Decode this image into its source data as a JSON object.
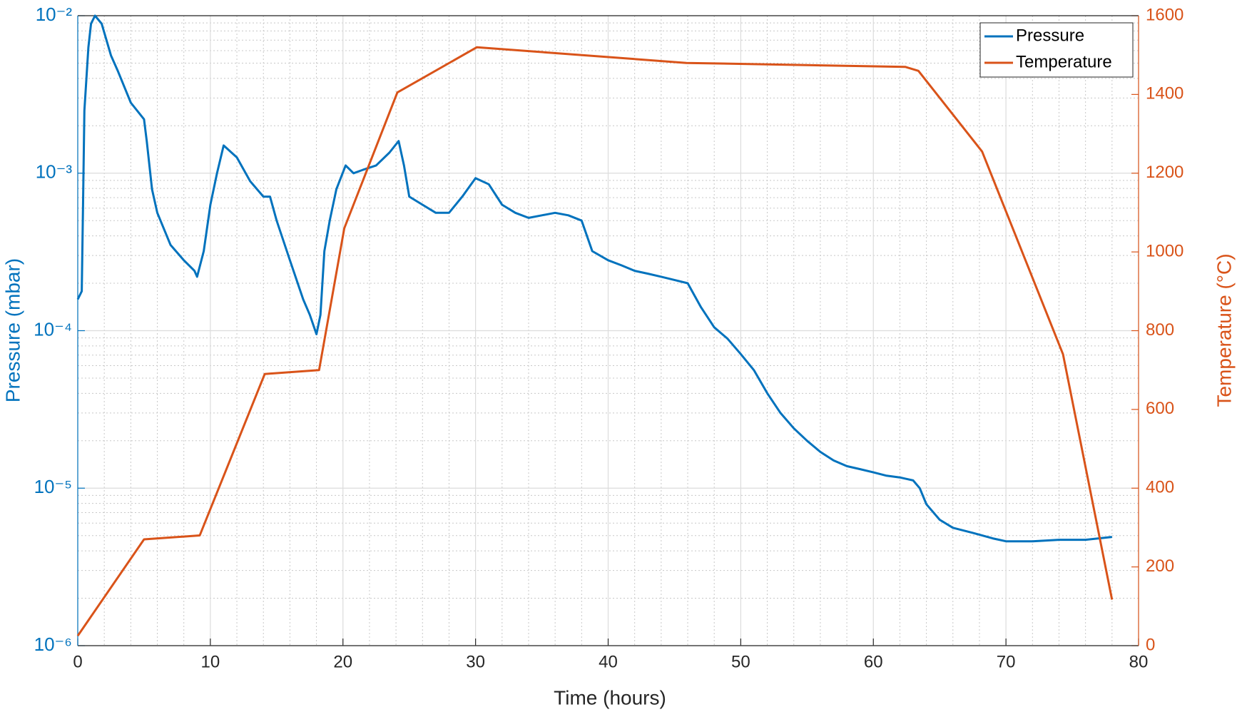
{
  "chart_data": {
    "type": "line",
    "xlabel": "Time (hours)",
    "ylabel": "Pressure (mbar)",
    "y2label": "Temperature (°C)",
    "xlim": [
      0,
      80
    ],
    "xticks": [
      0,
      10,
      20,
      30,
      40,
      50,
      60,
      70,
      80
    ],
    "ylim": [
      1e-06,
      0.01
    ],
    "yscale": "log",
    "yticks": [
      {
        "value": 1e-06,
        "label": "10⁻⁶"
      },
      {
        "value": 1e-05,
        "label": "10⁻⁵"
      },
      {
        "value": 0.0001,
        "label": "10⁻⁴"
      },
      {
        "value": 0.001,
        "label": "10⁻³"
      },
      {
        "value": 0.01,
        "label": "10⁻²"
      }
    ],
    "y2lim": [
      0,
      1600
    ],
    "y2ticks": [
      0,
      200,
      400,
      600,
      800,
      1000,
      1200,
      1400,
      1600
    ],
    "grid": true,
    "minor_grid": true,
    "legend": "top-right",
    "series": [
      {
        "name": "Pressure",
        "color": "#0072BD",
        "axis": "y",
        "x": [
          0,
          0.3,
          0.4,
          0.5,
          0.8,
          1.0,
          1.3,
          1.8,
          2.5,
          3,
          4,
          5,
          5.2,
          5.6,
          6,
          7,
          8,
          8.8,
          9,
          9.5,
          10,
          10.5,
          11,
          12,
          13,
          14,
          14.5,
          15,
          16,
          17,
          17.5,
          18,
          18.3,
          18.6,
          19,
          19.5,
          20.2,
          20.8,
          21.5,
          22.5,
          23.5,
          24.2,
          24.6,
          25,
          26,
          27,
          28,
          29,
          30,
          31,
          32,
          33,
          34,
          35,
          36,
          37,
          38,
          38.8,
          40,
          41,
          42,
          43,
          44,
          45,
          46,
          47,
          48,
          49,
          50,
          51,
          52,
          53,
          54,
          55,
          56,
          57,
          58,
          59,
          60,
          61,
          62,
          63,
          63.5,
          64,
          65,
          66,
          67.5,
          69,
          70,
          72,
          74,
          76,
          78
        ],
        "values": [
          0.000158,
          0.000178,
          0.00063,
          0.0025,
          0.0063,
          0.0089,
          0.01,
          0.0089,
          0.0056,
          0.0045,
          0.0028,
          0.0022,
          0.0016,
          0.00079,
          0.00056,
          0.00035,
          0.00028,
          0.00024,
          0.00022,
          0.00032,
          0.00063,
          0.001,
          0.0015,
          0.00126,
          0.00089,
          0.00071,
          0.00071,
          0.0005,
          0.00028,
          0.000158,
          0.000126,
          9.5e-05,
          0.000126,
          0.00032,
          0.0005,
          0.00079,
          0.00112,
          0.001,
          0.00105,
          0.00112,
          0.00135,
          0.0016,
          0.00112,
          0.00071,
          0.00063,
          0.00056,
          0.00056,
          0.00071,
          0.00093,
          0.00085,
          0.00063,
          0.00056,
          0.00052,
          0.00054,
          0.00056,
          0.00054,
          0.0005,
          0.00032,
          0.00028,
          0.00026,
          0.00024,
          0.00023,
          0.00022,
          0.00021,
          0.0002,
          0.000141,
          0.000105,
          8.9e-05,
          7.1e-05,
          5.6e-05,
          4e-05,
          3e-05,
          2.4e-05,
          2e-05,
          1.7e-05,
          1.5e-05,
          1.38e-05,
          1.32e-05,
          1.26e-05,
          1.2e-05,
          1.17e-05,
          1.12e-05,
          1e-05,
          7.9e-06,
          6.3e-06,
          5.6e-06,
          5.2e-06,
          4.8e-06,
          4.6e-06,
          4.6e-06,
          4.7e-06,
          4.7e-06,
          4.9e-06
        ]
      },
      {
        "name": "Temperature",
        "color": "#D95319",
        "axis": "y2",
        "x": [
          0,
          5,
          9.2,
          14.1,
          18.2,
          20.1,
          24.1,
          30.1,
          45.9,
          62.4,
          63.4,
          68.2,
          74.3,
          78
        ],
        "values": [
          25,
          270,
          280,
          690,
          700,
          1060,
          1405,
          1520,
          1480,
          1470,
          1460,
          1255,
          740,
          117
        ]
      }
    ]
  }
}
